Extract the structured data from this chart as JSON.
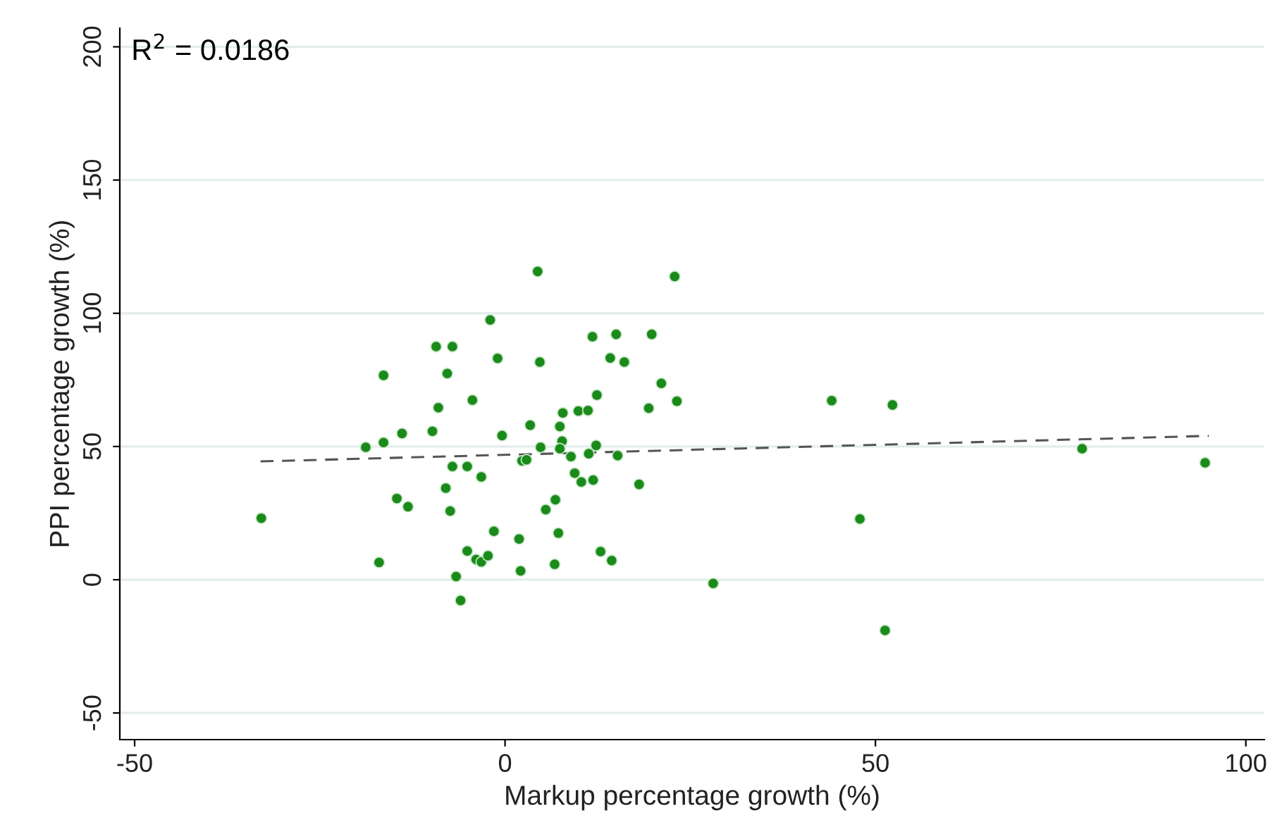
{
  "chart_data": {
    "type": "scatter",
    "xlabel": "Markup percentage growth (%)",
    "ylabel": "PPI percentage growth (%)",
    "annotations": [
      "R$^{2}$ = 0.0186"
    ],
    "xlim": [
      -52,
      102.5
    ],
    "ylim": [
      -60,
      207
    ],
    "xticks": [
      -50,
      0,
      50,
      100
    ],
    "yticks": [
      -50,
      0,
      50,
      100,
      150,
      200
    ],
    "grid": "y",
    "series": [
      {
        "marker": "circle",
        "color": "#1a8a1a",
        "x": [
          -32.9,
          -16.4,
          -9.3,
          -7.1,
          -7.8,
          -2.0,
          -4.4,
          -9.0,
          -9.8,
          -13.9,
          -16.4,
          -18.8,
          -7.1,
          -5.1,
          -3.2,
          -8.0,
          -14.6,
          -13.1,
          -7.4,
          -1.5,
          -17.0,
          -5.1,
          -3.9,
          -3.2,
          -2.3,
          -6.6,
          -6.0,
          4.4,
          22.9,
          11.8,
          15.0,
          19.8,
          -1.0,
          4.7,
          14.2,
          16.1,
          21.1,
          12.4,
          19.4,
          23.2,
          7.8,
          9.9,
          11.2,
          3.4,
          7.4,
          -0.4,
          7.7,
          4.8,
          12.3,
          7.4,
          8.9,
          11.3,
          15.2,
          2.3,
          2.9,
          9.4,
          10.3,
          11.9,
          18.1,
          6.8,
          5.5,
          1.9,
          7.2,
          12.9,
          14.4,
          2.1,
          6.7,
          28.1,
          44.1,
          52.3,
          47.9,
          51.3,
          77.9,
          94.5
        ],
        "values": [
          23.1,
          76.7,
          87.5,
          87.5,
          77.4,
          97.5,
          67.4,
          64.6,
          55.7,
          54.9,
          51.5,
          49.7,
          42.5,
          42.5,
          38.6,
          34.4,
          30.5,
          27.4,
          25.8,
          18.2,
          6.5,
          10.8,
          7.6,
          6.7,
          9.0,
          1.2,
          -7.8,
          115.7,
          113.8,
          91.2,
          92.1,
          92.1,
          83.1,
          81.7,
          83.2,
          81.7,
          73.7,
          69.3,
          64.4,
          67.0,
          62.6,
          63.3,
          63.5,
          58.0,
          57.5,
          54.1,
          52.0,
          49.7,
          50.4,
          49.2,
          46.2,
          47.3,
          46.6,
          44.6,
          45.0,
          40.0,
          36.7,
          37.4,
          35.8,
          30.0,
          26.3,
          15.3,
          17.5,
          10.6,
          7.2,
          3.3,
          5.8,
          -1.4,
          67.2,
          65.6,
          22.8,
          -19.0,
          49.2,
          43.9
        ]
      },
      {
        "type": "line",
        "color": "#555555",
        "line_style": "dashed",
        "x": [
          -33,
          95
        ],
        "values": [
          44.4,
          54.0
        ]
      }
    ]
  }
}
